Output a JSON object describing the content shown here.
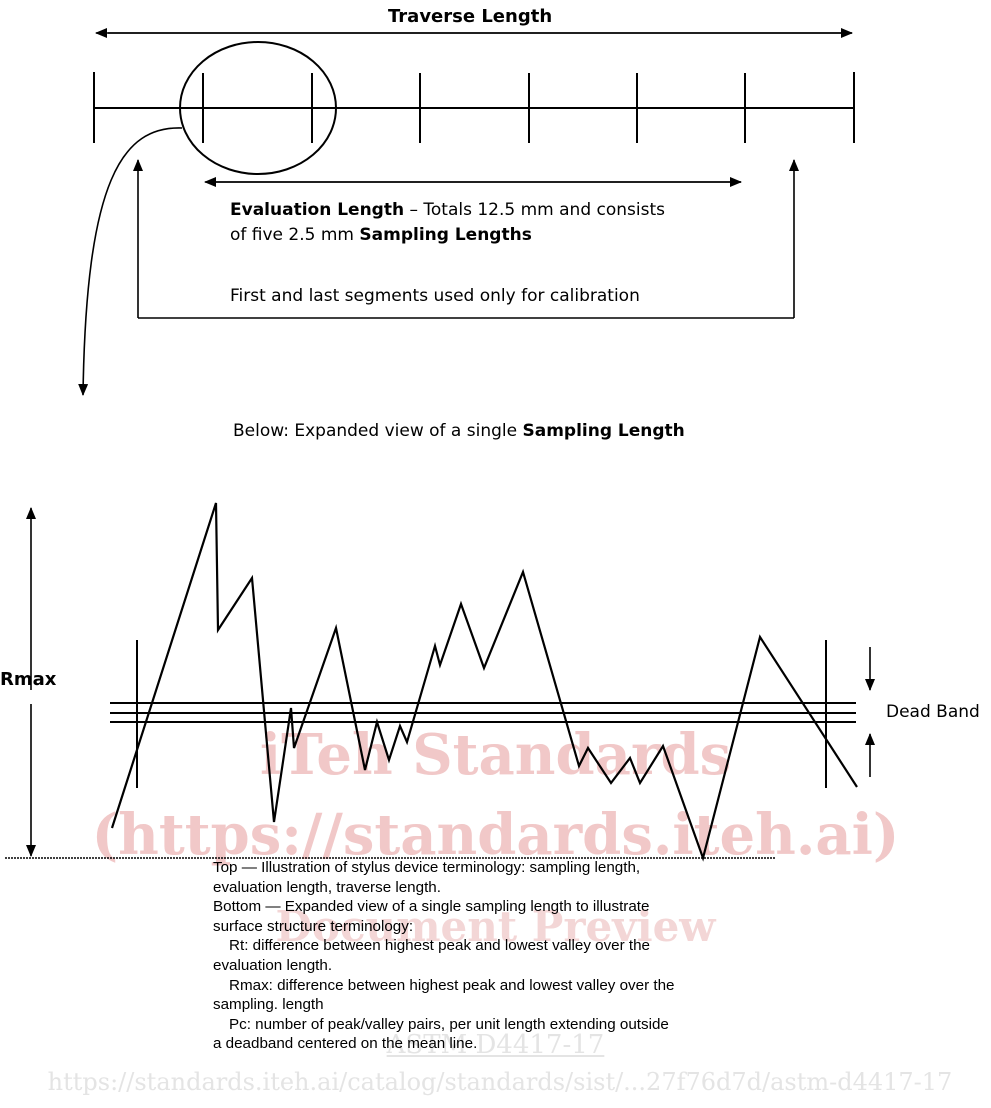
{
  "top_diagram": {
    "traverse_label": "Traverse Length",
    "evaluation_bold": "Evaluation Length",
    "evaluation_text_1": " – Totals 12.5 mm and consists",
    "evaluation_text_2a": "of five 2.5 mm ",
    "evaluation_text_2b": "Sampling Lengths",
    "calibration_note": "First and last segments used only for calibration"
  },
  "middle": {
    "below_prefix": "Below: Expanded view of a single ",
    "below_bold": "Sampling Length"
  },
  "bottom_diagram": {
    "rmax_label": "Rmax",
    "dead_band_label": "Dead Band"
  },
  "watermark": {
    "line1": "iTeh Standards",
    "line2": "(https://standards.iteh.ai)",
    "line3": "Document Preview",
    "line4": "ASTM D4417-17",
    "line5": "https://standards.iteh.ai/catalog/standards/sist/...27f76d7d/astm-d4417-17"
  },
  "caption": {
    "line1": "Top — Illustration of stylus device terminology: sampling length,",
    "line2": "evaluation length, traverse length.",
    "line3": "Bottom — Expanded view of a single sampling length to illustrate",
    "line4": "surface structure terminology:",
    "line5": "Rt: difference between highest peak and lowest valley over the",
    "line6": "evaluation length.",
    "line7": "Rmax: difference between highest peak and lowest valley over the",
    "line8": "sampling. length",
    "line9": "Pc: number of peak/valley pairs, per unit length extending outside",
    "line10": "a deadband centered on the mean line."
  }
}
